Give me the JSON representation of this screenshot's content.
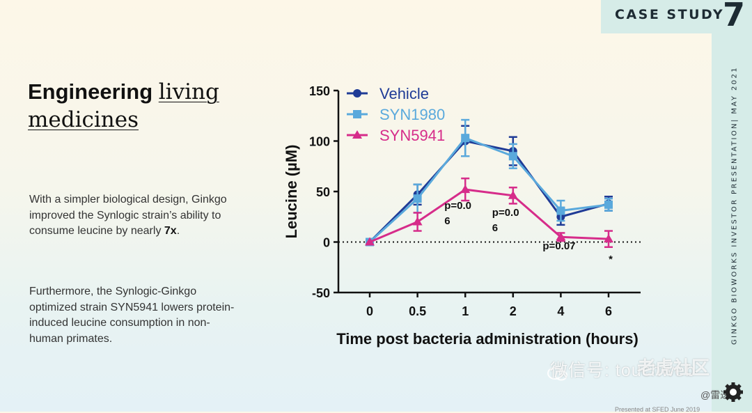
{
  "badge": {
    "label": "CASE STUDY",
    "number": "7"
  },
  "side_text": "GINKGO BIOWORKS   INVESTOR PRESENTATION| MAY 2021",
  "title": {
    "part1": "Engineering ",
    "part2": "living",
    "part3": "medicines"
  },
  "para1": {
    "text": "With a simpler biological design, Ginkgo improved the Synlogic strain’s ability to consume leucine by nearly ",
    "emph": "7x",
    "end": "."
  },
  "para2": "Furthermore, the Synlogic-Ginkgo optimized strain SYN5941 lowers protein-induced leucine consumption in non-human primates.",
  "watermark": {
    "wechat": "微信号: touchweb",
    "site": "老虎社区",
    "handle": "@雷递"
  },
  "footer": "Presented at SFED June 2019",
  "colors": {
    "vehicle": "#1f3b96",
    "syn1980": "#5aa9dc",
    "syn5941": "#d62c8a"
  },
  "chart_data": {
    "type": "line",
    "categories": [
      "0",
      "0.5",
      "1",
      "2",
      "4",
      "6"
    ],
    "xlabel": "Time post bacteria administration (hours)",
    "ylabel": "Leucine (µM)",
    "ylim": [
      -50,
      150
    ],
    "yticks": [
      "150",
      "100",
      "50",
      "0",
      "-50"
    ],
    "yticks_values": [
      150,
      100,
      50,
      0,
      -50
    ],
    "legend_position": "top-left",
    "reference_line": 0,
    "series": [
      {
        "name": "Vehicle",
        "marker": "circle",
        "values": [
          0,
          47,
          100,
          90,
          25,
          38
        ],
        "errors": [
          0,
          10,
          15,
          14,
          8,
          7
        ]
      },
      {
        "name": "SYN1980",
        "marker": "square",
        "values": [
          0,
          43,
          103,
          85,
          31,
          37
        ],
        "errors": [
          0,
          14,
          18,
          12,
          10,
          6
        ]
      },
      {
        "name": "SYN5941",
        "marker": "triangle",
        "values": [
          0,
          20,
          52,
          46,
          5,
          3
        ],
        "errors": [
          0,
          9,
          11,
          8,
          4,
          8
        ]
      }
    ],
    "annotations": [
      {
        "text1": "p=0.0",
        "text2": "6",
        "x_index": 2
      },
      {
        "text1": "p=0.0",
        "text2": "6",
        "x_index": 3
      },
      {
        "text1": "p=0.07",
        "text2": "",
        "x_index": 4
      },
      {
        "text1": "*",
        "text2": "",
        "x_index": 5
      }
    ]
  }
}
